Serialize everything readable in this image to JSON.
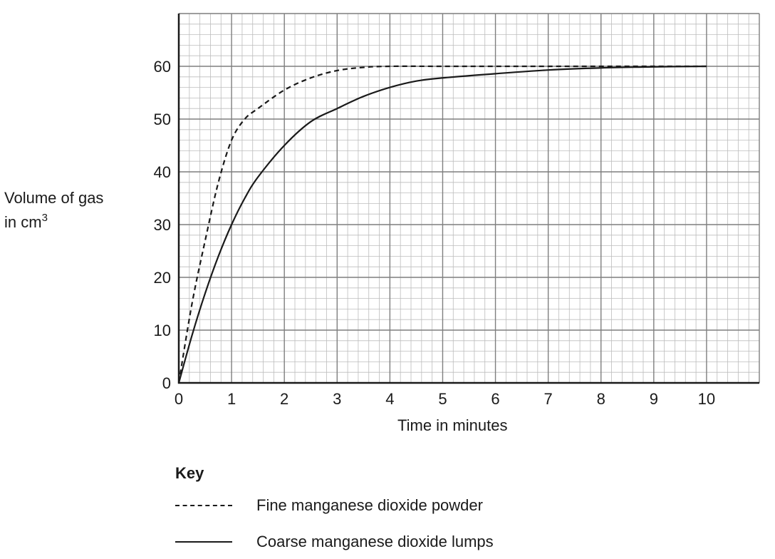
{
  "chart_data": {
    "type": "line",
    "ylabel": "Volume of gas",
    "ylabel_unit_prefix": "in cm",
    "ylabel_unit_exponent": "3",
    "xlabel": "Time in minutes",
    "xlim": [
      0,
      11
    ],
    "ylim": [
      0,
      70
    ],
    "x_ticks": [
      0,
      1,
      2,
      3,
      4,
      5,
      6,
      7,
      8,
      9,
      10
    ],
    "y_ticks": [
      0,
      10,
      20,
      30,
      40,
      50,
      60
    ],
    "grid": true,
    "legend_title": "Key",
    "series": [
      {
        "name": "Fine manganese dioxide powder",
        "style": "dashed",
        "x": [
          0,
          0.25,
          0.5,
          0.75,
          1.0,
          1.25,
          1.5,
          2.0,
          2.5,
          3.0,
          3.5,
          4.0,
          5.0,
          6.0,
          7.0,
          8.0,
          9.0,
          10.0
        ],
        "y": [
          0,
          15,
          27,
          38,
          46,
          50,
          52,
          55.5,
          57.8,
          59.2,
          59.8,
          60,
          60,
          60,
          60,
          60,
          60,
          60
        ]
      },
      {
        "name": "Coarse manganese dioxide lumps",
        "style": "solid",
        "x": [
          0,
          0.25,
          0.5,
          0.75,
          1.0,
          1.25,
          1.5,
          2.0,
          2.5,
          3.0,
          3.5,
          4.0,
          4.5,
          5.0,
          6.0,
          7.0,
          8.0,
          9.0,
          10.0
        ],
        "y": [
          0,
          9,
          17,
          24,
          30,
          35,
          39,
          45,
          49.5,
          52,
          54.3,
          56,
          57.2,
          57.8,
          58.6,
          59.3,
          59.7,
          59.9,
          60
        ]
      }
    ]
  }
}
